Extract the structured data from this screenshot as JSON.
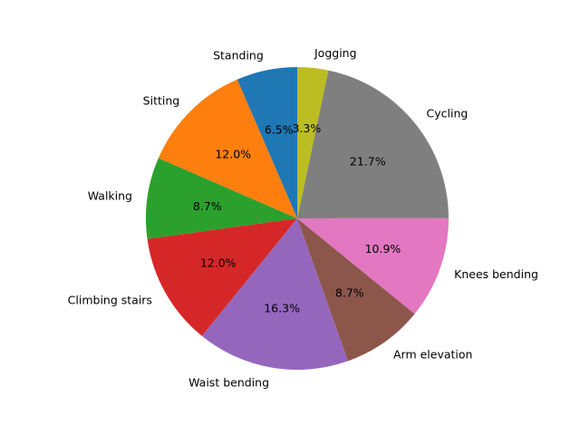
{
  "chart_data": {
    "type": "pie",
    "title": "",
    "start_angle_deg": 90,
    "direction": "counterclockwise",
    "legend": "none",
    "categories": [
      "Standing",
      "Sitting",
      "Walking",
      "Climbing stairs",
      "Waist bending",
      "Arm elevation",
      "Knees bending",
      "Cycling",
      "Jogging"
    ],
    "values": [
      6.5,
      12.0,
      8.7,
      12.0,
      16.3,
      8.7,
      10.9,
      21.7,
      3.3
    ],
    "value_labels": [
      "6.5%",
      "12.0%",
      "8.7%",
      "12.0%",
      "16.3%",
      "8.7%",
      "10.9%",
      "21.7%",
      "3.3%"
    ],
    "colors": [
      "#1f77b4",
      "#ff7f0e",
      "#2ca02c",
      "#d62728",
      "#9467bd",
      "#8c564b",
      "#e377c2",
      "#7f7f7f",
      "#bcbd22"
    ]
  }
}
